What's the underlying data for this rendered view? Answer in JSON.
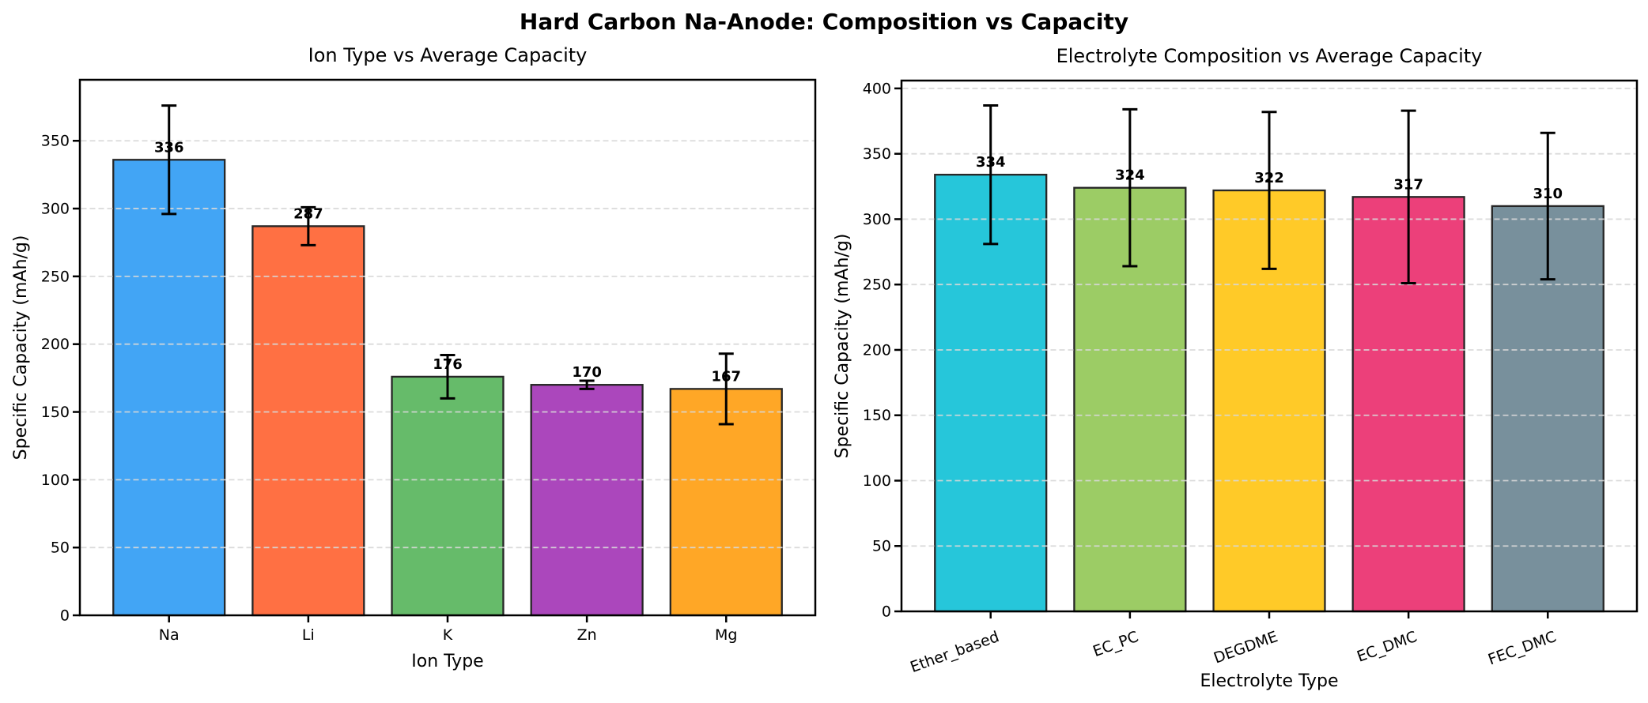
{
  "figure": {
    "title": "Hard Carbon Na-Anode: Composition vs Capacity",
    "background": "#ffffff",
    "text_color": "#000000",
    "grid_color": "#d8d8d8",
    "spine_color": "#000000",
    "error_bar_color": "#000000",
    "bar_edge_color": "#262626"
  },
  "chart_data": [
    {
      "type": "bar",
      "title": "Ion Type vs Average Capacity",
      "xlabel": "Ion Type",
      "ylabel": "Specific Capacity (mAh/g)",
      "categories": [
        "Na",
        "Li",
        "K",
        "Zn",
        "Mg"
      ],
      "values": [
        336,
        287,
        176,
        170,
        167
      ],
      "error_bars": [
        40,
        14,
        16,
        3,
        26
      ],
      "bar_colors": [
        "#42A5F5",
        "#FF7043",
        "#66BB6A",
        "#AB47BC",
        "#FFA726"
      ],
      "ylim": [
        0,
        395
      ],
      "yticks": [
        0,
        50,
        100,
        150,
        200,
        250,
        300,
        350
      ],
      "grid": "horizontal-dashed",
      "legend": "none",
      "xtick_rotation": 0
    },
    {
      "type": "bar",
      "title": "Electrolyte Composition vs Average Capacity",
      "xlabel": "Electrolyte Type",
      "ylabel": "Specific Capacity (mAh/g)",
      "categories": [
        "Ether_based",
        "EC_PC",
        "DEGDME",
        "EC_DMC",
        "FEC_DMC"
      ],
      "values": [
        334,
        324,
        322,
        317,
        310
      ],
      "error_bars": [
        53,
        60,
        60,
        66,
        56
      ],
      "bar_colors": [
        "#26C6DA",
        "#9CCC65",
        "#FFCA28",
        "#EC407A",
        "#78909C"
      ],
      "ylim": [
        0,
        406
      ],
      "yticks": [
        0,
        50,
        100,
        150,
        200,
        250,
        300,
        350,
        400
      ],
      "grid": "horizontal-dashed",
      "legend": "none",
      "xtick_rotation": 20
    }
  ]
}
